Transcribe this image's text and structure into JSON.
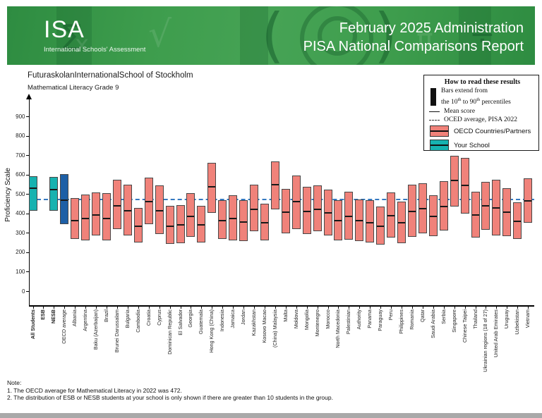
{
  "header": {
    "logo": "ISA",
    "logo_sub": "International Schools' Assessment",
    "title_line1": "February 2025 Administration",
    "title_line2": "PISA National Comparisons Report"
  },
  "report": {
    "school": "FuturaskolanInternationalSchool of Stockholm",
    "subject": "Mathematical Literacy Grade 9"
  },
  "legend": {
    "title": "How to read these results",
    "bars_line1": "Bars extend from",
    "bars_line2_pre": "the 10",
    "bars_line2_sup1": "th",
    "bars_line2_mid": " to 90",
    "bars_line2_sup2": "th",
    "bars_line2_post": " percentiles",
    "mean_label": "Mean score",
    "dashed_label": "OCED average, PISA 2022",
    "oecd_label": "OECD Countries/Partners",
    "school_label": "Your School"
  },
  "colors": {
    "school_teal": "#17b2b0",
    "oecd_average_blue": "#1d5fa6",
    "country_salmon": "#f0827a",
    "dashed_line_blue": "#3579c0",
    "header_green": "#3e9d4d"
  },
  "chart_data": {
    "type": "bar",
    "variant": "percentile range bars (10th to 90th) with mean line",
    "title": "FuturaskolanInternationalSchool of Stockholm",
    "subtitle": "Mathematical Literacy Grade 9",
    "ylabel": "Proficiency Scale",
    "yticks": [
      0,
      100,
      200,
      300,
      400,
      500,
      600,
      700,
      800,
      900
    ],
    "ylim": [
      0,
      960
    ],
    "grid": false,
    "legend_position": "top-right",
    "oecd_average_line": 472,
    "groups": [
      {
        "label": "All Students",
        "bold": true,
        "type": "school",
        "p10": 415,
        "mean": 532,
        "p90": 590
      },
      {
        "label": "ESB",
        "bold": true,
        "type": "school",
        "p10": null,
        "mean": null,
        "p90": null
      },
      {
        "label": "NESB",
        "bold": true,
        "type": "school",
        "p10": 413,
        "mean": 528,
        "p90": 588
      },
      {
        "label": "OECD average",
        "bold": false,
        "type": "oecd-average",
        "p10": 343,
        "mean": 472,
        "p90": 603
      },
      {
        "label": "Albania",
        "bold": false,
        "type": "country",
        "p10": 268,
        "mean": 368,
        "p90": 478
      },
      {
        "label": "Argentina",
        "bold": false,
        "type": "country",
        "p10": 263,
        "mean": 378,
        "p90": 496
      },
      {
        "label": "Baku (Azerbaijan)",
        "bold": false,
        "type": "country",
        "p10": 288,
        "mean": 397,
        "p90": 509
      },
      {
        "label": "Brazil",
        "bold": false,
        "type": "country",
        "p10": 261,
        "mean": 379,
        "p90": 504
      },
      {
        "label": "Brunei Darussalam",
        "bold": false,
        "type": "country",
        "p10": 319,
        "mean": 442,
        "p90": 573
      },
      {
        "label": "Bulgaria",
        "bold": false,
        "type": "country",
        "p10": 287,
        "mean": 417,
        "p90": 549
      },
      {
        "label": "Cambodia",
        "bold": false,
        "type": "country",
        "p10": 249,
        "mean": 336,
        "p90": 428
      },
      {
        "label": "Croatia",
        "bold": false,
        "type": "country",
        "p10": 344,
        "mean": 463,
        "p90": 584
      },
      {
        "label": "Cyprus",
        "bold": false,
        "type": "country",
        "p10": 293,
        "mean": 418,
        "p90": 545
      },
      {
        "label": "Dominican Republic",
        "bold": false,
        "type": "country",
        "p10": 243,
        "mean": 339,
        "p90": 440
      },
      {
        "label": "El Salvador",
        "bold": false,
        "type": "country",
        "p10": 246,
        "mean": 343,
        "p90": 444
      },
      {
        "label": "Georgia",
        "bold": false,
        "type": "country",
        "p10": 281,
        "mean": 390,
        "p90": 503
      },
      {
        "label": "Guatemala",
        "bold": false,
        "type": "country",
        "p10": 251,
        "mean": 344,
        "p90": 441
      },
      {
        "label": "Hong Kong (China)",
        "bold": false,
        "type": "country",
        "p10": 404,
        "mean": 540,
        "p90": 661
      },
      {
        "label": "Indonesia",
        "bold": false,
        "type": "country",
        "p10": 267,
        "mean": 366,
        "p90": 469
      },
      {
        "label": "Jamaica",
        "bold": false,
        "type": "country",
        "p10": 263,
        "mean": 377,
        "p90": 492
      },
      {
        "label": "Jordan",
        "bold": false,
        "type": "country",
        "p10": 257,
        "mean": 361,
        "p90": 467
      },
      {
        "label": "Kazakhstan",
        "bold": false,
        "type": "country",
        "p10": 309,
        "mean": 425,
        "p90": 547
      },
      {
        "label": "Kosovo Macao",
        "bold": false,
        "type": "country",
        "p10": 261,
        "mean": 355,
        "p90": 451
      },
      {
        "label": "(China) Malaysia",
        "bold": false,
        "type": "country",
        "p10": 421,
        "mean": 552,
        "p90": 667
      },
      {
        "label": "Malta",
        "bold": false,
        "type": "country",
        "p10": 299,
        "mean": 409,
        "p90": 527
      },
      {
        "label": "Moldova",
        "bold": false,
        "type": "country",
        "p10": 321,
        "mean": 466,
        "p90": 597
      },
      {
        "label": "Mongolia",
        "bold": false,
        "type": "country",
        "p10": 294,
        "mean": 414,
        "p90": 537
      },
      {
        "label": "Montenegro",
        "bold": false,
        "type": "country",
        "p10": 307,
        "mean": 425,
        "p90": 544
      },
      {
        "label": "Morocco",
        "bold": false,
        "type": "country",
        "p10": 287,
        "mean": 406,
        "p90": 524
      },
      {
        "label": "North Macedonia",
        "bold": false,
        "type": "country",
        "p10": 261,
        "mean": 365,
        "p90": 467
      },
      {
        "label": "Palestinian",
        "bold": false,
        "type": "country",
        "p10": 266,
        "mean": 389,
        "p90": 511
      },
      {
        "label": "Authority",
        "bold": false,
        "type": "country",
        "p10": 257,
        "mean": 366,
        "p90": 471
      },
      {
        "label": "Panama",
        "bold": false,
        "type": "country",
        "p10": 249,
        "mean": 357,
        "p90": 467
      },
      {
        "label": "Paraguay",
        "bold": false,
        "type": "country",
        "p10": 241,
        "mean": 338,
        "p90": 437
      },
      {
        "label": "Peru",
        "bold": false,
        "type": "country",
        "p10": 277,
        "mean": 391,
        "p90": 507
      },
      {
        "label": "Philippines",
        "bold": false,
        "type": "country",
        "p10": 247,
        "mean": 355,
        "p90": 461
      },
      {
        "label": "Romania",
        "bold": false,
        "type": "country",
        "p10": 281,
        "mean": 414,
        "p90": 547
      },
      {
        "label": "Qatar",
        "bold": false,
        "type": "country",
        "p10": 297,
        "mean": 428,
        "p90": 557
      },
      {
        "label": "Saudi Arabia",
        "bold": false,
        "type": "country",
        "p10": 284,
        "mean": 389,
        "p90": 494
      },
      {
        "label": "Serbia",
        "bold": false,
        "type": "country",
        "p10": 311,
        "mean": 440,
        "p90": 567
      },
      {
        "label": "Singapore",
        "bold": false,
        "type": "country",
        "p10": 437,
        "mean": 575,
        "p90": 697
      },
      {
        "label": "Chinese Taipei",
        "bold": false,
        "type": "country",
        "p10": 399,
        "mean": 547,
        "p90": 687
      },
      {
        "label": "Thailand",
        "bold": false,
        "type": "country",
        "p10": 277,
        "mean": 394,
        "p90": 513
      },
      {
        "label": "Ukrainian regions (18 of 27)",
        "bold": false,
        "type": "country",
        "p10": 317,
        "mean": 441,
        "p90": 561
      },
      {
        "label": "United Arab Emirates",
        "bold": false,
        "type": "country",
        "p10": 287,
        "mean": 431,
        "p90": 574
      },
      {
        "label": "Uruguay",
        "bold": false,
        "type": "country",
        "p10": 282,
        "mean": 409,
        "p90": 531
      },
      {
        "label": "Uzbekistan",
        "bold": false,
        "type": "country",
        "p10": 267,
        "mean": 364,
        "p90": 457
      },
      {
        "label": "Vietnam",
        "bold": false,
        "type": "country",
        "p10": 351,
        "mean": 469,
        "p90": 581
      }
    ]
  },
  "notes": {
    "heading": "Note:",
    "items": [
      " 1. The OECD average for Mathematical Literacy in 2022 was 472.",
      " 2. The distribution of ESB or NESB students at your school is only shown if there are greater than 10 students in the group."
    ]
  }
}
